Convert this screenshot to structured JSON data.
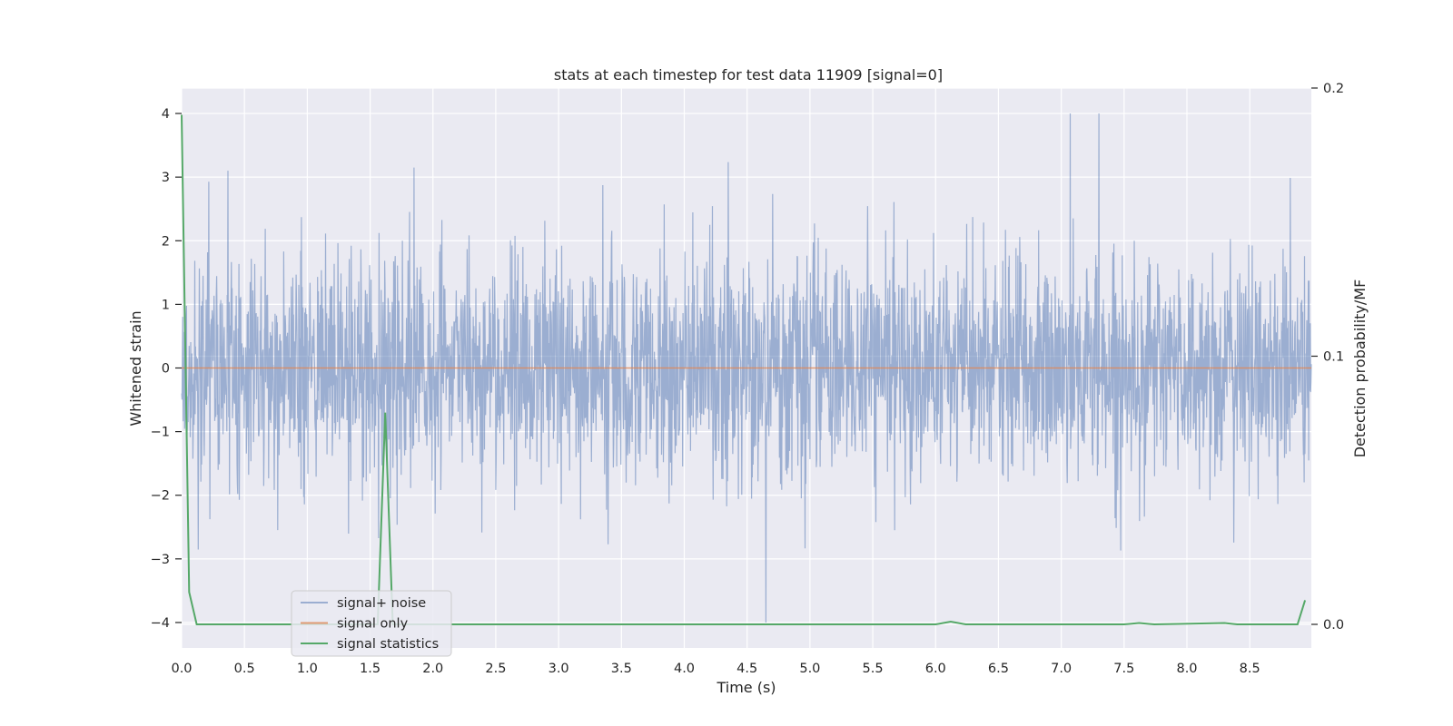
{
  "chart_data": {
    "type": "line",
    "title": "stats at each timestep for test data 11909 [signal=0]",
    "xlabel": "Time (s)",
    "ylabel": "Whitened strain",
    "y2label": "Detection probability/MF",
    "xlim": [
      0.0,
      8.99
    ],
    "ylim": [
      -4.4,
      4.4
    ],
    "y2lim": [
      -0.0088,
      0.2
    ],
    "x_ticks": [
      0.0,
      0.5,
      1.0,
      1.5,
      2.0,
      2.5,
      3.0,
      3.5,
      4.0,
      4.5,
      5.0,
      5.5,
      6.0,
      6.5,
      7.0,
      7.5,
      8.0,
      8.5
    ],
    "x_tick_labels": [
      "0.0",
      "0.5",
      "1.0",
      "1.5",
      "2.0",
      "2.5",
      "3.0",
      "3.5",
      "4.0",
      "4.5",
      "5.0",
      "5.5",
      "6.0",
      "6.5",
      "7.0",
      "7.5",
      "8.0",
      "8.5"
    ],
    "y_ticks": [
      4,
      3,
      2,
      1,
      0,
      -1,
      -2,
      -3,
      -4
    ],
    "y_tick_labels": [
      "4",
      "3",
      "2",
      "1",
      "0",
      "−1",
      "−2",
      "−3",
      "−4"
    ],
    "y2_ticks": [
      0.2,
      0.1,
      0.0
    ],
    "y2_tick_labels": [
      "0.2",
      "0.1",
      "0.0"
    ],
    "grid": true,
    "legend_position": "lower-left",
    "colors": {
      "plot_background": "#eaeaf2",
      "grid": "#ffffff",
      "noise": "#4c72b0",
      "signal": "#dd8452",
      "statistics": "#55a868"
    },
    "series": [
      {
        "name": "signal+ noise",
        "axis": "left",
        "description_range": [
          -4.0,
          4.0
        ],
        "peaks": [
          {
            "x": 0.37,
            "y": 3.1
          },
          {
            "x": 1.85,
            "y": 3.15
          },
          {
            "x": 4.65,
            "y": -4.0
          },
          {
            "x": 7.07,
            "y": 4.0
          },
          {
            "x": 7.3,
            "y": 4.0
          }
        ]
      },
      {
        "name": "signal only",
        "axis": "left",
        "x": [
          0.0,
          8.99
        ],
        "y": [
          0.0,
          0.0
        ]
      },
      {
        "name": "signal statistics",
        "axis": "right",
        "x": [
          0.0,
          0.06,
          0.12,
          1.5,
          1.56,
          1.62,
          1.68,
          1.74,
          6.0,
          6.12,
          6.24,
          7.5,
          7.62,
          7.74,
          8.3,
          8.4,
          8.88,
          8.94
        ],
        "y": [
          0.19,
          0.012,
          0.0,
          0.0,
          0.0,
          0.079,
          0.0,
          0.0,
          0.0,
          0.001,
          0.0,
          0.0,
          0.0005,
          0.0,
          0.0005,
          0.0,
          0.0,
          0.009
        ]
      }
    ]
  }
}
